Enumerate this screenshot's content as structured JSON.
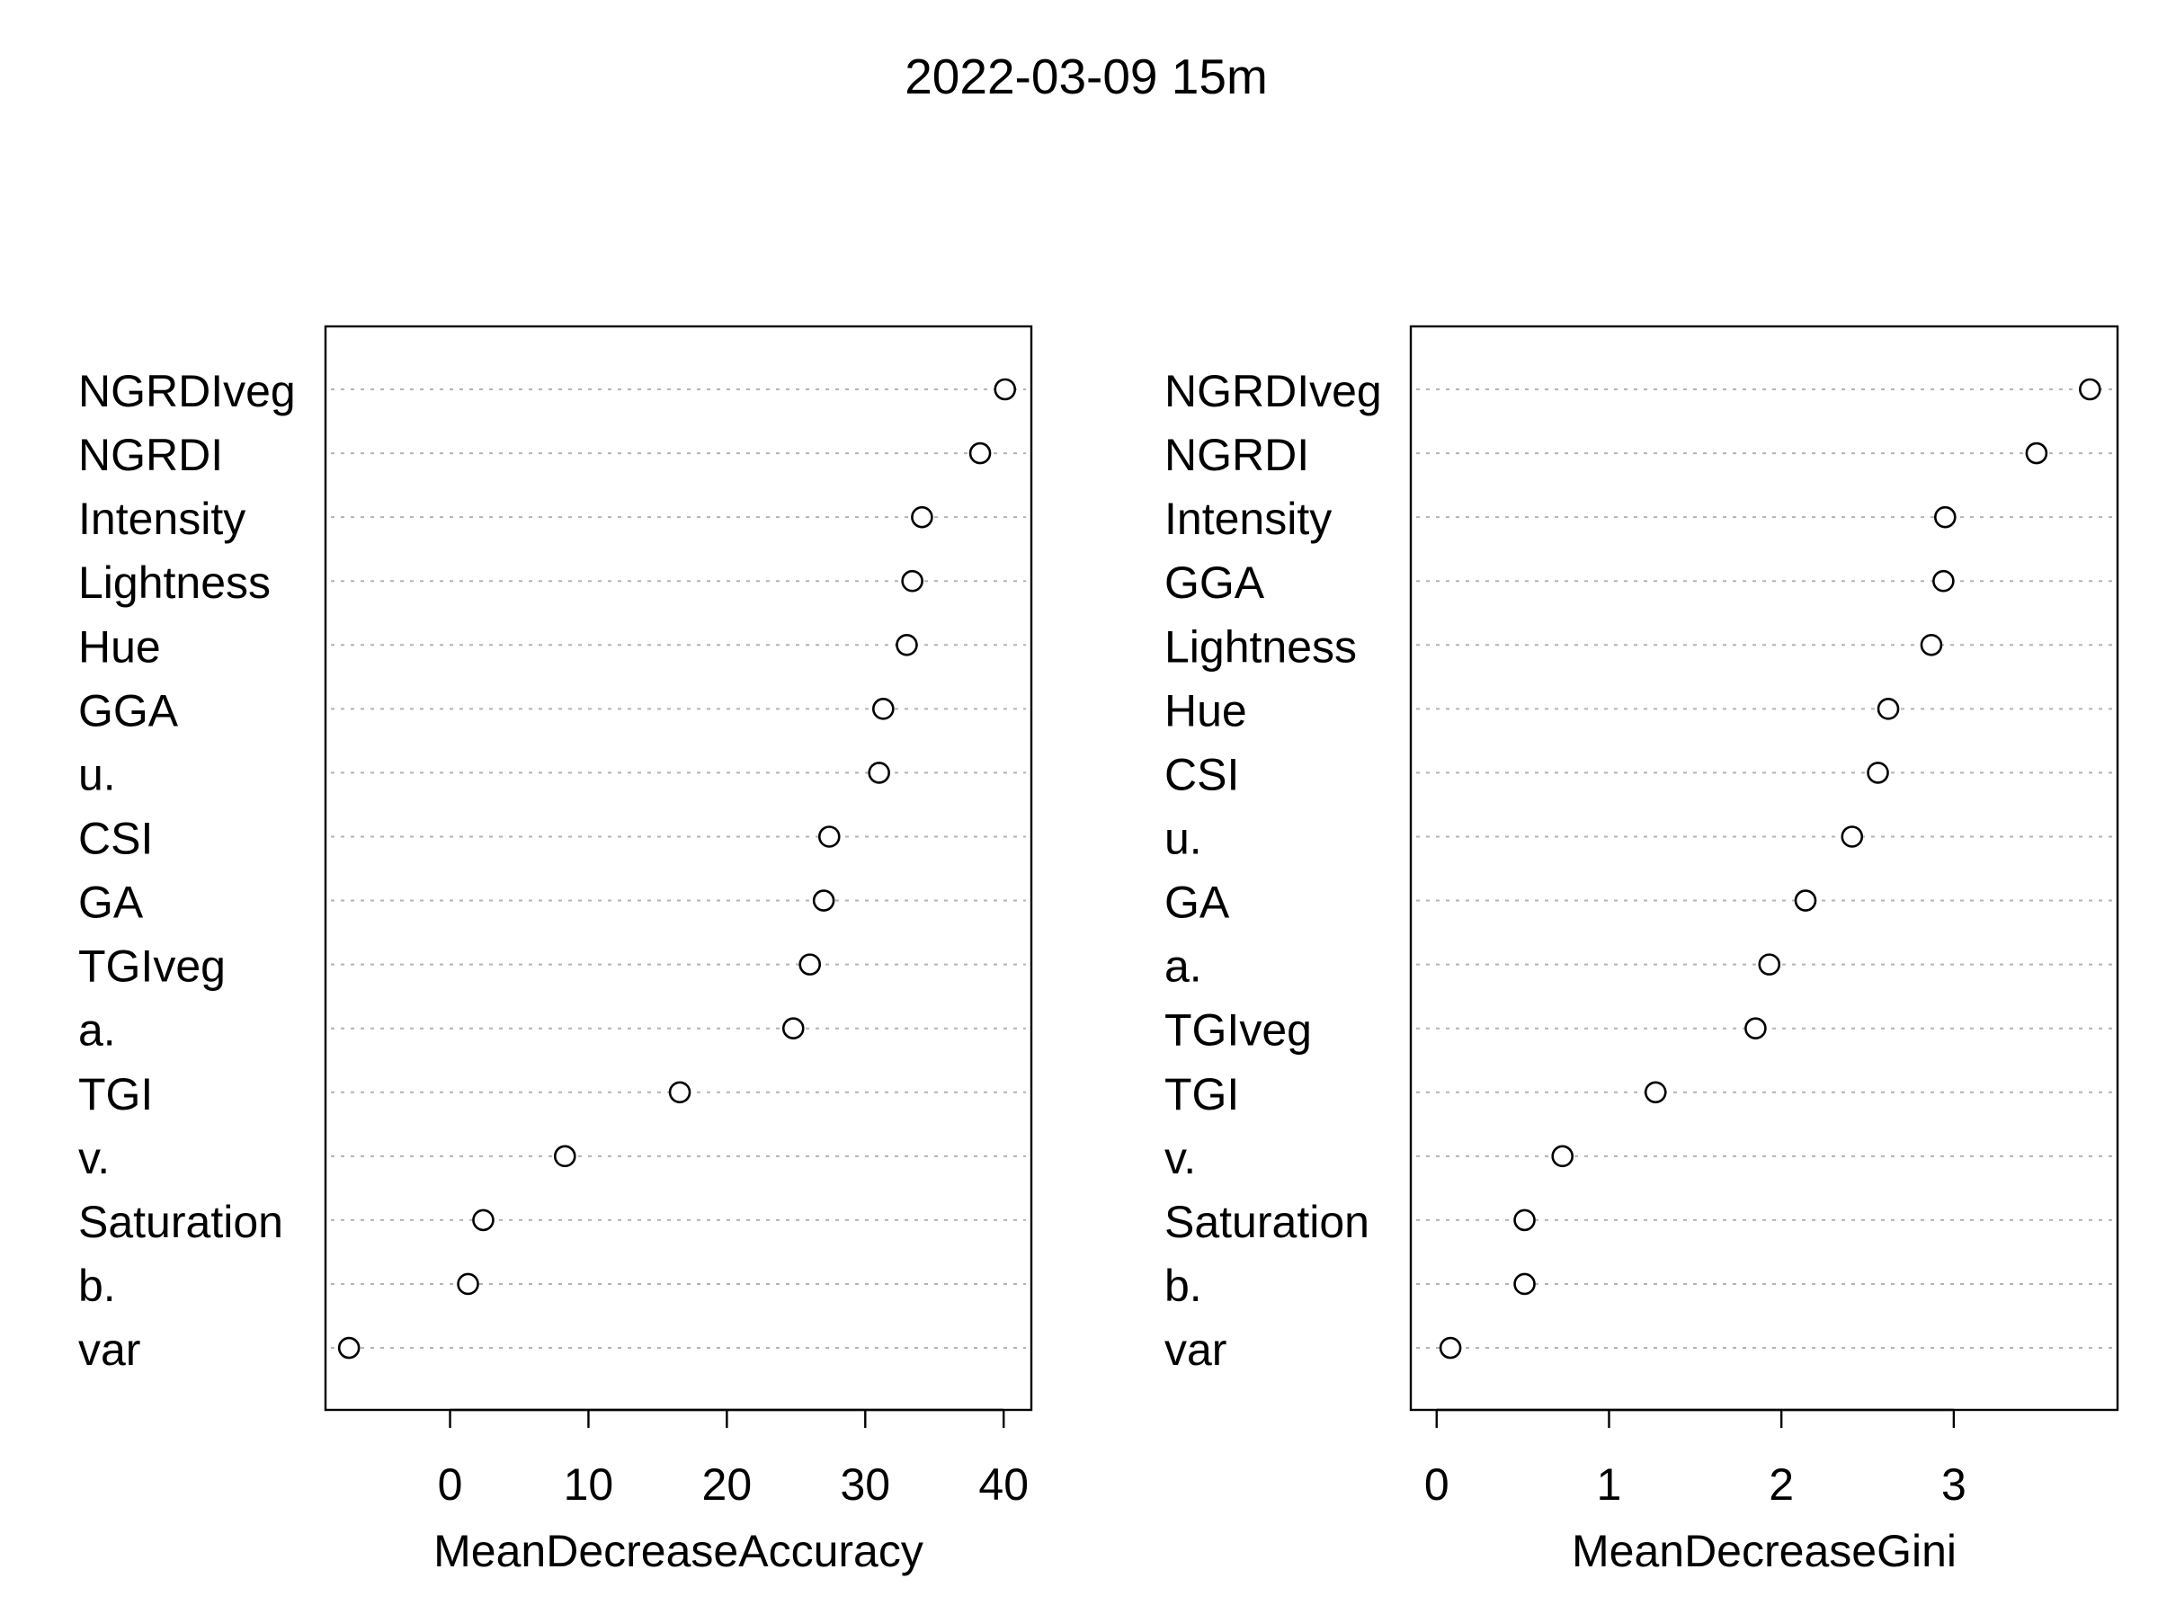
{
  "title": "2022-03-09 15m",
  "chart_data": [
    {
      "type": "scatter",
      "style": "dotchart",
      "xlabel": "MeanDecreaseAccuracy",
      "xlim": [
        -9,
        42
      ],
      "xticks": [
        0,
        10,
        20,
        30,
        40
      ],
      "grid": false,
      "categories": [
        "NGRDIveg",
        "NGRDI",
        "Intensity",
        "Lightness",
        "Hue",
        "GGA",
        "u.",
        "CSI",
        "GA",
        "TGIveg",
        "a.",
        "TGI",
        "v.",
        "Saturation",
        "b.",
        "var"
      ],
      "values": [
        40.1,
        38.3,
        34.1,
        33.4,
        33.0,
        31.3,
        31.0,
        27.4,
        27.0,
        26.0,
        24.8,
        16.6,
        8.3,
        2.4,
        1.3,
        -7.3
      ]
    },
    {
      "type": "scatter",
      "style": "dotchart",
      "xlabel": "MeanDecreaseGini",
      "xlim": [
        -0.15,
        3.95
      ],
      "xticks": [
        0,
        1,
        2,
        3
      ],
      "grid": false,
      "categories": [
        "NGRDIveg",
        "NGRDI",
        "Intensity",
        "GGA",
        "Lightness",
        "Hue",
        "CSI",
        "u.",
        "GA",
        "a.",
        "TGIveg",
        "TGI",
        "v.",
        "Saturation",
        "b.",
        "var"
      ],
      "values": [
        3.79,
        3.48,
        2.95,
        2.94,
        2.87,
        2.62,
        2.56,
        2.41,
        2.14,
        1.93,
        1.85,
        1.27,
        0.73,
        0.51,
        0.51,
        0.08
      ]
    }
  ]
}
